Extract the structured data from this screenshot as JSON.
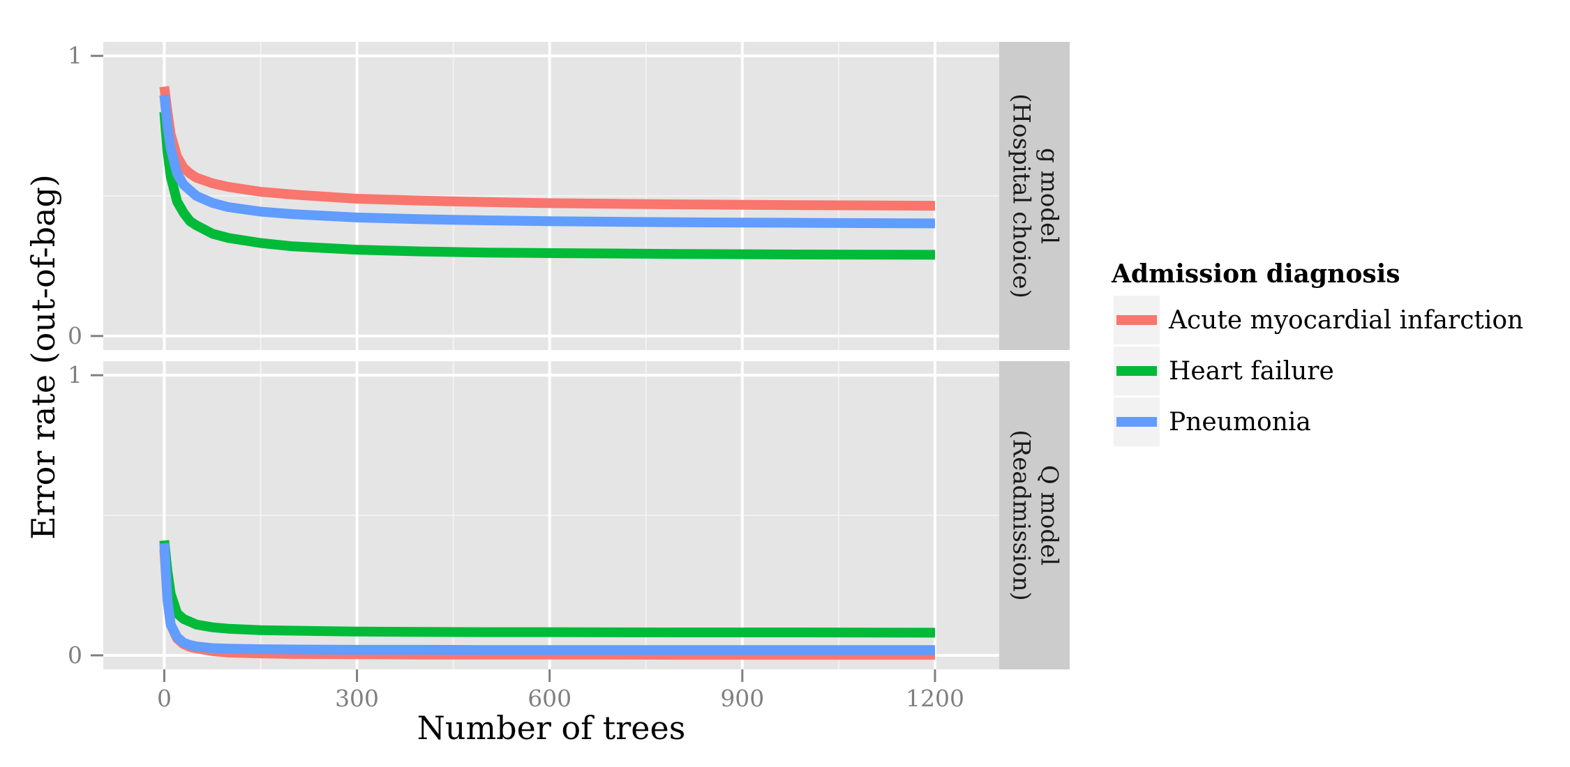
{
  "chart_data": {
    "type": "line",
    "xlabel": "Number of trees",
    "ylabel": "Error rate (out-of-bag)",
    "xlim": [
      -95,
      1300
    ],
    "x_ticks": [
      "0",
      "300",
      "600",
      "900",
      "1200"
    ],
    "x_tick_values": [
      0,
      300,
      600,
      900,
      1200
    ],
    "y_ticks": [
      "0",
      "1"
    ],
    "y_tick_values": [
      0,
      1
    ],
    "grid": true,
    "legend": {
      "title": "Admission diagnosis",
      "placement": "right",
      "entries": [
        "Acute myocardial infarction",
        "Heart failure",
        "Pneumonia"
      ]
    },
    "colors": {
      "Acute myocardial infarction": "#F8766D",
      "Heart failure": "#00BA38",
      "Pneumonia": "#619CFF",
      "panel_background": "#E5E5E5",
      "strip_background": "#CCCCCC"
    },
    "panels": [
      {
        "strip_lines": [
          "g model",
          "(Hospital choice)"
        ],
        "ylim": [
          -0.05,
          1.05
        ],
        "series": [
          {
            "name": "Acute myocardial infarction",
            "x": [
              0,
              5,
              10,
              20,
              30,
              40,
              50,
              75,
              100,
              150,
              200,
              300,
              400,
              500,
              600,
              800,
              1000,
              1200
            ],
            "y": [
              0.89,
              0.8,
              0.72,
              0.64,
              0.6,
              0.58,
              0.565,
              0.545,
              0.532,
              0.515,
              0.505,
              0.49,
              0.483,
              0.478,
              0.474,
              0.47,
              0.467,
              0.465
            ]
          },
          {
            "name": "Heart failure",
            "x": [
              0,
              5,
              10,
              20,
              30,
              40,
              50,
              75,
              100,
              150,
              200,
              300,
              400,
              500,
              600,
              800,
              1000,
              1200
            ],
            "y": [
              0.8,
              0.66,
              0.57,
              0.48,
              0.44,
              0.41,
              0.395,
              0.365,
              0.35,
              0.332,
              0.32,
              0.308,
              0.302,
              0.298,
              0.296,
              0.293,
              0.291,
              0.29
            ]
          },
          {
            "name": "Pneumonia",
            "x": [
              0,
              5,
              10,
              20,
              30,
              40,
              50,
              75,
              100,
              150,
              200,
              300,
              400,
              500,
              600,
              800,
              1000,
              1200
            ],
            "y": [
              0.86,
              0.75,
              0.67,
              0.58,
              0.54,
              0.52,
              0.5,
              0.475,
              0.46,
              0.444,
              0.435,
              0.423,
              0.417,
              0.413,
              0.41,
              0.406,
              0.404,
              0.402
            ]
          }
        ]
      },
      {
        "strip_lines": [
          "Q model",
          "(Readmission)"
        ],
        "ylim": [
          -0.05,
          1.05
        ],
        "series": [
          {
            "name": "Acute myocardial infarction",
            "x": [
              0,
              5,
              10,
              20,
              30,
              40,
              50,
              75,
              100,
              150,
              200,
              300,
              400,
              500,
              600,
              800,
              1000,
              1200
            ],
            "y": [
              0.38,
              0.2,
              0.11,
              0.06,
              0.04,
              0.03,
              0.025,
              0.015,
              0.01,
              0.007,
              0.005,
              0.004,
              0.003,
              0.003,
              0.003,
              0.002,
              0.002,
              0.002
            ]
          },
          {
            "name": "Heart failure",
            "x": [
              0,
              5,
              10,
              20,
              30,
              40,
              50,
              75,
              100,
              150,
              200,
              300,
              400,
              500,
              600,
              800,
              1000,
              1200
            ],
            "y": [
              0.41,
              0.3,
              0.22,
              0.15,
              0.13,
              0.12,
              0.11,
              0.1,
              0.095,
              0.09,
              0.088,
              0.085,
              0.084,
              0.083,
              0.083,
              0.082,
              0.082,
              0.081
            ]
          },
          {
            "name": "Pneumonia",
            "x": [
              0,
              5,
              10,
              20,
              30,
              40,
              50,
              75,
              100,
              150,
              200,
              300,
              400,
              500,
              600,
              800,
              1000,
              1200
            ],
            "y": [
              0.4,
              0.2,
              0.11,
              0.065,
              0.045,
              0.037,
              0.032,
              0.026,
              0.024,
              0.022,
              0.021,
              0.02,
              0.02,
              0.019,
              0.019,
              0.019,
              0.019,
              0.019
            ]
          }
        ]
      }
    ]
  }
}
